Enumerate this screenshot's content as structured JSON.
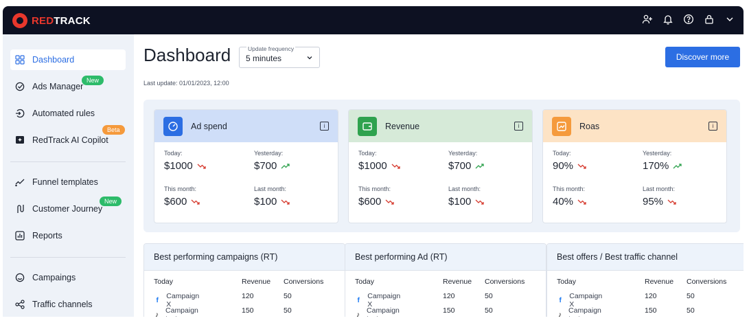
{
  "app": {
    "logo_red": "RED",
    "logo_white": "TRACK"
  },
  "topbar": {
    "icons": [
      "add-user-icon",
      "bell-icon",
      "help-icon",
      "lock-icon",
      "chevron-down-icon"
    ]
  },
  "sidebar": {
    "items": [
      {
        "label": "Dashboard",
        "icon": "grid-icon",
        "active": true
      },
      {
        "label": "Ads Manager",
        "icon": "target-icon",
        "badge": "New"
      },
      {
        "label": "Automated rules",
        "icon": "rules-icon"
      },
      {
        "label": "RedTrack AI Copilot",
        "icon": "ai-copilot-icon",
        "badge": "Beta"
      },
      {
        "label": "Funnel templates",
        "icon": "funnel-icon"
      },
      {
        "label": "Customer Journey",
        "icon": "journey-icon",
        "badge": "New"
      },
      {
        "label": "Reports",
        "icon": "reports-icon"
      },
      {
        "label": "Campaings",
        "icon": "campaigns-icon"
      },
      {
        "label": "Traffic channels",
        "icon": "traffic-icon"
      }
    ]
  },
  "header": {
    "title": "Dashboard",
    "frequency_label": "Update frequency",
    "frequency_value": "5 minutes",
    "discover": "Discover more",
    "last_update": "Last update: 01/01/2023, 12:00"
  },
  "metrics": [
    {
      "title": "Ad spend",
      "head_color": "#cfdef8",
      "icon_bg": "#2c6ee3",
      "today_label": "Today:",
      "today": "$1000",
      "today_trend": "down",
      "yesterday_label": "Yesterday:",
      "yesterday": "$700",
      "yesterday_trend": "up",
      "month_label": "This month:",
      "month": "$600",
      "month_trend": "down",
      "lastmonth_label": "Last month:",
      "lastmonth": "$100",
      "lastmonth_trend": "down"
    },
    {
      "title": "Revenue",
      "head_color": "#d6ead8",
      "icon_bg": "#2fa24e",
      "today_label": "Today:",
      "today": "$1000",
      "today_trend": "down",
      "yesterday_label": "Yesterday:",
      "yesterday": "$700",
      "yesterday_trend": "up",
      "month_label": "This month:",
      "month": "$600",
      "month_trend": "down",
      "lastmonth_label": "Last month:",
      "lastmonth": "$100",
      "lastmonth_trend": "down"
    },
    {
      "title": "Roas",
      "head_color": "#fde3c5",
      "icon_bg": "#f59a3c",
      "today_label": "Today:",
      "today": "90%",
      "today_trend": "down",
      "yesterday_label": "Yesterday:",
      "yesterday": "170%",
      "yesterday_trend": "up",
      "month_label": "This month:",
      "month": "40%",
      "month_trend": "down",
      "lastmonth_label": "Last month:",
      "lastmonth": "95%",
      "lastmonth_trend": "down"
    }
  ],
  "tables": [
    {
      "title": "Best performing campaigns (RT)",
      "columns": [
        "Today",
        "Revenue",
        "Conversions"
      ],
      "rows": [
        {
          "source": "facebook",
          "name": "Campaign X",
          "revenue": "120",
          "conversions": "50"
        },
        {
          "source": "tiktok",
          "name": "Campaign test",
          "revenue": "150",
          "conversions": "50"
        }
      ]
    },
    {
      "title": "Best performing Ad (RT)",
      "columns": [
        "Today",
        "Revenue",
        "Conversions"
      ],
      "rows": [
        {
          "source": "facebook",
          "name": "Campaign X",
          "revenue": "120",
          "conversions": "50"
        },
        {
          "source": "tiktok",
          "name": "Campaign test",
          "revenue": "150",
          "conversions": "50"
        }
      ]
    },
    {
      "title": "Best offers / Best traffic channel",
      "columns": [
        "Today",
        "Revenue",
        "Conversions"
      ],
      "rows": [
        {
          "source": "facebook",
          "name": "Campaign X",
          "revenue": "120",
          "conversions": "50"
        },
        {
          "source": "tiktok",
          "name": "Campaign test",
          "revenue": "150",
          "conversions": "50"
        }
      ]
    }
  ],
  "colors": {
    "accent": "#2c6ee3",
    "trend_down": "#d63b2f",
    "trend_up": "#2fa24e",
    "topbar": "#0d1122",
    "brand": "#e8372c"
  }
}
